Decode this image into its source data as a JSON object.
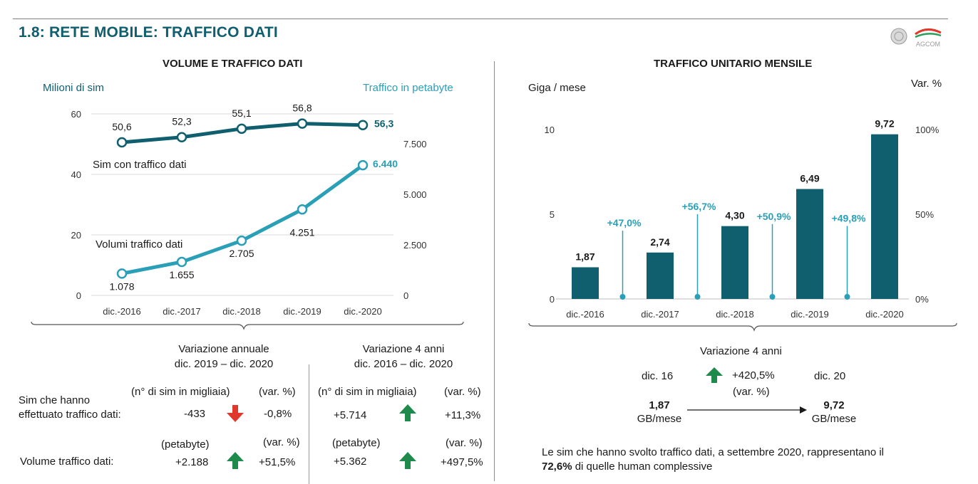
{
  "page_title": "1.8: RETE MOBILE: TRAFFICO DATI",
  "logo_text": "AGCOM",
  "colors": {
    "dark_teal": "#0f5f6e",
    "light_teal": "#2a9fb8",
    "arrow_up": "#1e8a4c",
    "arrow_down": "#e0392b"
  },
  "left": {
    "section_title": "VOLUME E TRAFFICO DATI",
    "axis_left_title": "Milioni di sim",
    "axis_right_title": "Traffico in petabyte",
    "series_sim_label": "Sim con traffico dati",
    "series_vol_label": "Volumi traffico dati"
  },
  "right": {
    "section_title": "TRAFFICO UNITARIO MENSILE",
    "axis_left_title": "Giga / mese",
    "axis_right_title": "Var. %"
  },
  "chart_data": [
    {
      "type": "line",
      "title": "VOLUME E TRAFFICO DATI",
      "x": [
        "dic.-2016",
        "dic.-2017",
        "dic.-2018",
        "dic.-2019",
        "dic.-2020"
      ],
      "y_left": {
        "title": "Milioni di sim",
        "ylim": [
          0,
          60
        ],
        "ticks": [
          "0",
          "20",
          "40",
          "60"
        ]
      },
      "y_right": {
        "title": "Traffico in petabyte",
        "ylim": [
          0,
          7500
        ],
        "ticks": [
          "0",
          "2.500",
          "5.000",
          "7.500"
        ]
      },
      "series": [
        {
          "name": "Sim con traffico dati",
          "axis": "left",
          "color": "#0f5f6e",
          "values": [
            50.6,
            52.3,
            55.1,
            56.8,
            56.3
          ],
          "labels": [
            "50,6",
            "52,3",
            "55,1",
            "56,8",
            "56,3"
          ]
        },
        {
          "name": "Volumi traffico dati",
          "axis": "right",
          "color": "#2a9fb8",
          "values": [
            1078,
            1655,
            2705,
            4251,
            6440
          ],
          "labels": [
            "1.078",
            "1.655",
            "2.705",
            "4.251",
            "6.440"
          ]
        }
      ],
      "grid": true
    },
    {
      "type": "bar",
      "title": "TRAFFICO UNITARIO MENSILE",
      "categories": [
        "dic.-2016",
        "dic.-2017",
        "dic.-2018",
        "dic.-2019",
        "dic.-2020"
      ],
      "values": [
        1.87,
        2.74,
        4.3,
        6.49,
        9.72
      ],
      "value_labels": [
        "1,87",
        "2,74",
        "4,30",
        "6,49",
        "9,72"
      ],
      "y_left": {
        "title": "Giga / mese",
        "ylim": [
          0,
          10
        ],
        "ticks": [
          "0",
          "5",
          "10"
        ]
      },
      "y_right": {
        "title": "Var. %",
        "ylim": [
          0,
          100
        ],
        "ticks": [
          "0%",
          "50%",
          "100%"
        ]
      },
      "variations": {
        "values": [
          47.0,
          56.7,
          50.9,
          49.8
        ],
        "labels": [
          "+47,0%",
          "+56,7%",
          "+50,9%",
          "+49,8%"
        ]
      },
      "grid": false
    }
  ],
  "table": {
    "annual_header": [
      "Variazione annuale",
      "dic. 2019 – dic. 2020"
    ],
    "four_year_header": [
      "Variazione 4 anni",
      "dic. 2016 – dic. 2020"
    ],
    "row1_label": [
      "Sim che hanno",
      "effettuato traffico dati:"
    ],
    "row1_unit_annual": "(n° di  sim in migliaia)",
    "row1_var_annual": "(var. %)",
    "row1_unit_4y": "(n° di  sim in migliaia)",
    "row1_var_4y": "(var. %)",
    "row1_annual_value": "-433",
    "row1_annual_pct": "-0,8%",
    "row1_4y_value": "+5.714",
    "row1_4y_pct": "+11,3%",
    "row2_label": "Volume traffico dati:",
    "row2_unit_annual": "(petabyte)",
    "row2_var_annual": "(var. %)",
    "row2_unit_4y": "(petabyte)",
    "row2_var_4y": "(var. %)",
    "row2_annual_value": "+2.188",
    "row2_annual_pct": "+51,5%",
    "row2_4y_value": "+5.362",
    "row2_4y_pct": "+497,5%"
  },
  "right_summary": {
    "title": "Variazione 4 anni",
    "start_label": "dic. 16",
    "pct": "+420,5%",
    "pct_unit": "(var. %)",
    "end_label": "dic. 20",
    "start_value": "1,87",
    "start_unit": "GB/mese",
    "end_value": "9,72",
    "end_unit": "GB/mese",
    "note_text_1": "Le sim che hanno svolto traffico dati, a settembre 2020, rappresentano il",
    "note_bold": "72,6%",
    "note_text_2": " di quelle human complessive"
  }
}
